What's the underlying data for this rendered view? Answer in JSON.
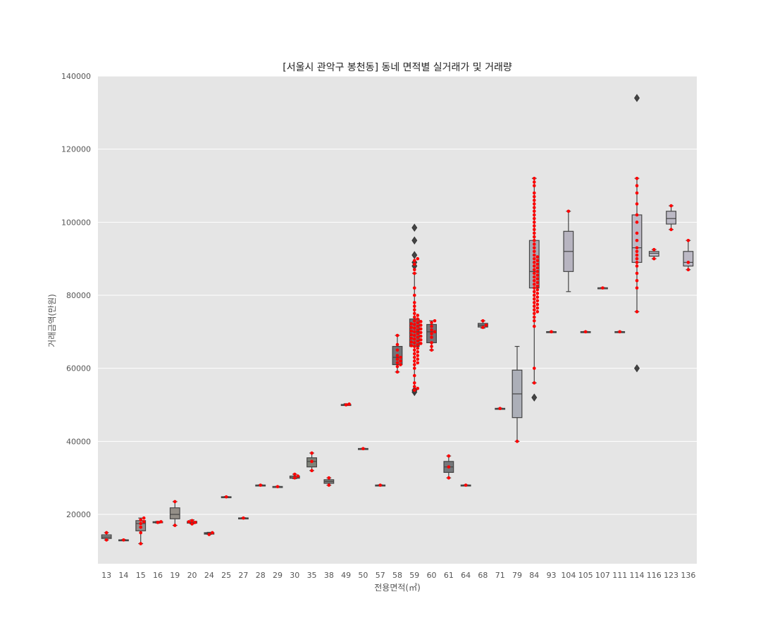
{
  "chart_data": {
    "type": "box",
    "title": "[서울시 관악구 봉천동] 동네 면적별 실거래가 및 거래량",
    "xlabel": "전용면적(㎡)",
    "ylabel": "거래금액(만원)",
    "ylim": [
      6500,
      140000
    ],
    "yticks": [
      20000,
      40000,
      60000,
      80000,
      100000,
      120000,
      140000
    ],
    "ytick_labels": [
      "20000",
      "40000",
      "60000",
      "80000",
      "100000",
      "120000",
      "140000"
    ],
    "grid": true,
    "background": "#e5e5e5",
    "colors": {
      "points": "#ff0000",
      "outlier": "#444444",
      "whisker": "#444444"
    },
    "categories": [
      "13",
      "14",
      "15",
      "16",
      "19",
      "20",
      "24",
      "25",
      "27",
      "28",
      "29",
      "30",
      "35",
      "38",
      "49",
      "50",
      "57",
      "58",
      "59",
      "60",
      "61",
      "64",
      "68",
      "71",
      "79",
      "84",
      "93",
      "104",
      "105",
      "107",
      "111",
      "114",
      "116",
      "123",
      "136"
    ],
    "boxes": [
      {
        "min": 13000,
        "q1": 13400,
        "median": 13800,
        "q3": 14400,
        "max": 15000,
        "outliers": [],
        "color": "#8c8c8c"
      },
      {
        "min": 12900,
        "q1": 12950,
        "median": 13000,
        "q3": 13050,
        "max": 13100,
        "outliers": [],
        "color": "#8e8c8c"
      },
      {
        "min": 12000,
        "q1": 15500,
        "median": 17500,
        "q3": 18300,
        "max": 19000,
        "outliers": [],
        "color": "#948e8e"
      },
      {
        "min": 17600,
        "q1": 17750,
        "median": 17900,
        "q3": 18000,
        "max": 18100,
        "outliers": [],
        "color": "#958f8f"
      },
      {
        "min": 17000,
        "q1": 18800,
        "median": 20000,
        "q3": 21800,
        "max": 23500,
        "outliers": [],
        "color": "#948f88"
      },
      {
        "min": 17400,
        "q1": 17600,
        "median": 17800,
        "q3": 18100,
        "max": 18500,
        "outliers": [],
        "color": "#979389"
      },
      {
        "min": 14500,
        "q1": 14600,
        "median": 14800,
        "q3": 15000,
        "max": 15100,
        "outliers": [],
        "color": "#8f8f8a"
      },
      {
        "min": 24700,
        "q1": 24750,
        "median": 24800,
        "q3": 24850,
        "max": 24900,
        "outliers": [],
        "color": "#8a8a85"
      },
      {
        "min": 18900,
        "q1": 18950,
        "median": 19000,
        "q3": 19050,
        "max": 19100,
        "outliers": [],
        "color": "#8b8b86"
      },
      {
        "min": 27900,
        "q1": 27950,
        "median": 28000,
        "q3": 28050,
        "max": 28100,
        "outliers": [],
        "color": "#87877f"
      },
      {
        "min": 27500,
        "q1": 27550,
        "median": 27600,
        "q3": 27650,
        "max": 27700,
        "outliers": [],
        "color": "#858582"
      },
      {
        "min": 29800,
        "q1": 29900,
        "median": 30000,
        "q3": 30500,
        "max": 31000,
        "outliers": [],
        "color": "#80807a"
      },
      {
        "min": 32000,
        "q1": 33000,
        "median": 34500,
        "q3": 35500,
        "max": 36800,
        "outliers": [],
        "color": "#7e8278"
      },
      {
        "min": 28000,
        "q1": 28500,
        "median": 29000,
        "q3": 29500,
        "max": 30000,
        "outliers": [],
        "color": "#7f7f7b"
      },
      {
        "min": 49900,
        "q1": 49950,
        "median": 50000,
        "q3": 50100,
        "max": 50300,
        "outliers": [],
        "color": "#7a7a78"
      },
      {
        "min": 37900,
        "q1": 37950,
        "median": 38000,
        "q3": 38050,
        "max": 38100,
        "outliers": [],
        "color": "#77797a"
      },
      {
        "min": 27900,
        "q1": 27950,
        "median": 28000,
        "q3": 28050,
        "max": 28100,
        "outliers": [],
        "color": "#76787a"
      },
      {
        "min": 59000,
        "q1": 61000,
        "median": 63000,
        "q3": 66000,
        "max": 69000,
        "outliers": [],
        "color": "#727477"
      },
      {
        "min": 54000,
        "q1": 66000,
        "median": 70000,
        "q3": 73500,
        "max": 86000,
        "outliers": [
          53500,
          54000,
          88000,
          89000,
          91000,
          95000,
          98500
        ],
        "color": "#717378"
      },
      {
        "min": 65000,
        "q1": 67000,
        "median": 70000,
        "q3": 72000,
        "max": 73000,
        "outliers": [],
        "color": "#727479"
      },
      {
        "min": 30000,
        "q1": 31500,
        "median": 33000,
        "q3": 34500,
        "max": 36000,
        "outliers": [],
        "color": "#75777a"
      },
      {
        "min": 27900,
        "q1": 27950,
        "median": 28000,
        "q3": 28050,
        "max": 28100,
        "outliers": [],
        "color": "#77797c"
      },
      {
        "min": 71000,
        "q1": 71300,
        "median": 71800,
        "q3": 72300,
        "max": 73000,
        "outliers": [],
        "color": "#7b7d82"
      },
      {
        "min": 48900,
        "q1": 48950,
        "median": 49000,
        "q3": 49050,
        "max": 49100,
        "outliers": [],
        "color": "#9a9ca3"
      },
      {
        "min": 40000,
        "q1": 46500,
        "median": 53000,
        "q3": 59500,
        "max": 66000,
        "outliers": [],
        "color": "#acafb8"
      },
      {
        "min": 56000,
        "q1": 82000,
        "median": 86500,
        "q3": 95000,
        "max": 112000,
        "outliers": [
          52000
        ],
        "color": "#a9abb4"
      },
      {
        "min": 69900,
        "q1": 69950,
        "median": 70000,
        "q3": 70050,
        "max": 70100,
        "outliers": [],
        "color": "#b4b2bd"
      },
      {
        "min": 81000,
        "q1": 86500,
        "median": 92000,
        "q3": 97500,
        "max": 103000,
        "outliers": [],
        "color": "#b7b4c0"
      },
      {
        "min": 69900,
        "q1": 69950,
        "median": 70000,
        "q3": 70050,
        "max": 70100,
        "outliers": [],
        "color": "#b8b6c1"
      },
      {
        "min": 81900,
        "q1": 81950,
        "median": 82000,
        "q3": 82050,
        "max": 82100,
        "outliers": [],
        "color": "#bab7c3"
      },
      {
        "min": 69900,
        "q1": 69950,
        "median": 70000,
        "q3": 70050,
        "max": 70100,
        "outliers": [],
        "color": "#bbb8c4"
      },
      {
        "min": 75500,
        "q1": 89000,
        "median": 93000,
        "q3": 102000,
        "max": 112000,
        "outliers": [
          60000,
          134000
        ],
        "color": "#bcb9c5"
      },
      {
        "min": 90000,
        "q1": 90700,
        "median": 91500,
        "q3": 92000,
        "max": 92500,
        "outliers": [],
        "color": "#bcb9c5"
      },
      {
        "min": 98000,
        "q1": 99500,
        "median": 101000,
        "q3": 103000,
        "max": 104500,
        "outliers": [],
        "color": "#bcb9c5"
      },
      {
        "min": 87000,
        "q1": 88000,
        "median": 89000,
        "q3": 92000,
        "max": 95000,
        "outliers": [],
        "color": "#bcb9c5"
      }
    ],
    "points": [
      [
        13000,
        15000
      ],
      [
        13000
      ],
      [
        12000,
        15000,
        16500,
        17500,
        18000,
        18500,
        19000
      ],
      [
        17800,
        18000
      ],
      [
        17000,
        23500
      ],
      [
        17400,
        17800,
        18000,
        18300
      ],
      [
        14500,
        15000
      ],
      [
        24800
      ],
      [
        19000
      ],
      [
        28000
      ],
      [
        27600
      ],
      [
        30000,
        30500,
        31000
      ],
      [
        32000,
        34500,
        36800
      ],
      [
        28000,
        30000
      ],
      [
        50000,
        50200
      ],
      [
        38000
      ],
      [
        28000
      ],
      [
        59000,
        60500,
        61000,
        61500,
        62000,
        62500,
        63000,
        63500,
        65000,
        66500,
        69000
      ],
      [
        54000,
        54500,
        55000,
        56000,
        58000,
        60000,
        61000,
        61500,
        62000,
        62500,
        63000,
        63500,
        64000,
        64500,
        65000,
        65500,
        66000,
        66200,
        66500,
        66800,
        67000,
        67200,
        67500,
        67800,
        68000,
        68200,
        68500,
        68800,
        69000,
        69200,
        69500,
        69800,
        70000,
        70200,
        70500,
        70800,
        71000,
        71200,
        71500,
        71800,
        72000,
        72200,
        72500,
        72800,
        73000,
        73500,
        74000,
        74500,
        75000,
        76000,
        77000,
        78000,
        80000,
        82000,
        86000,
        87000,
        88500,
        89500,
        90000
      ],
      [
        65000,
        66000,
        67000,
        68500,
        69500,
        70000,
        70500,
        71500,
        72500,
        73000
      ],
      [
        30000,
        33000,
        36000
      ],
      [
        28000
      ],
      [
        71200,
        71800,
        73000
      ],
      [
        49000
      ],
      [
        40000
      ],
      [
        56000,
        60000,
        71500,
        73000,
        74000,
        75000,
        75500,
        76000,
        76500,
        77000,
        77500,
        78000,
        78500,
        79000,
        79500,
        80000,
        80500,
        81000,
        81500,
        82000,
        82500,
        83000,
        83500,
        84000,
        84500,
        85000,
        85500,
        86000,
        86500,
        87000,
        87500,
        88000,
        88500,
        89000,
        89500,
        90000,
        90500,
        91000,
        92000,
        93000,
        94000,
        95000,
        96000,
        97000,
        98000,
        99000,
        100000,
        101000,
        102000,
        103000,
        104000,
        105000,
        106000,
        107000,
        108000,
        110000,
        111000,
        112000
      ],
      [
        70000
      ],
      [
        103000
      ],
      [
        70000
      ],
      [
        82000
      ],
      [
        70000
      ],
      [
        75500,
        82000,
        84000,
        86000,
        88000,
        89000,
        90000,
        91000,
        92000,
        93000,
        95000,
        97000,
        100000,
        102000,
        105000,
        108000,
        110000,
        112000
      ],
      [
        90000,
        92500
      ],
      [
        98000,
        104500
      ],
      [
        87000,
        89000,
        95000
      ]
    ]
  }
}
